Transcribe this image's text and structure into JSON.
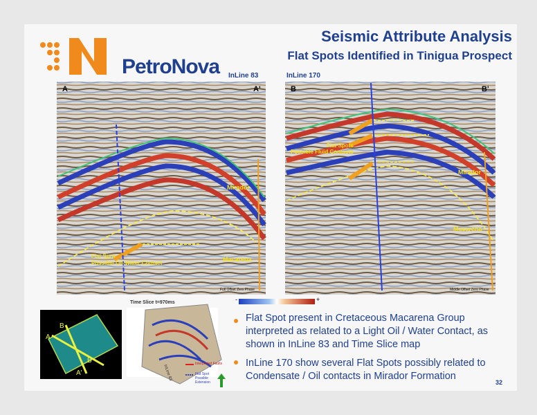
{
  "header": {
    "title": "Seismic Attribute Analysis",
    "subtitle": "Flat Spots Identified in Tinigua Prospect",
    "logo": "PetroNova"
  },
  "panels": [
    {
      "title": "InLine 83",
      "left": "A",
      "right": "A'",
      "labels": [
        "Mirador",
        "Macarena",
        "Flat Spot",
        "Possible Oil-Water Contact"
      ],
      "footer": "Full Offset Zero Phase"
    },
    {
      "title": "InLine 170",
      "left": "B",
      "right": "B'",
      "labels": [
        "Flat Spots",
        "Possible Fluid Contacts",
        "Mirador",
        "Macarena"
      ],
      "footer": "Middle Offset Zero Phase"
    }
  ],
  "time_slice": {
    "title": "Time Slice t=970ms",
    "map_labels": [
      "B",
      "A",
      "B'",
      "A'"
    ],
    "inline_label": "InLine 83",
    "legend": [
      "Interpreted Faults",
      "Flat Spot Possible Extension"
    ],
    "scale": [
      "-",
      "+"
    ]
  },
  "bullets": [
    "Flat Spot present in Cretaceous Macarena Group interpreted as related to a Light Oil / Water Contact, as shown in InLine 83 and Time Slice map",
    "InLine 170 show several Flat Spots possibly related to Condensate / Oil contacts in Mirador Formation"
  ],
  "page_number": "32"
}
